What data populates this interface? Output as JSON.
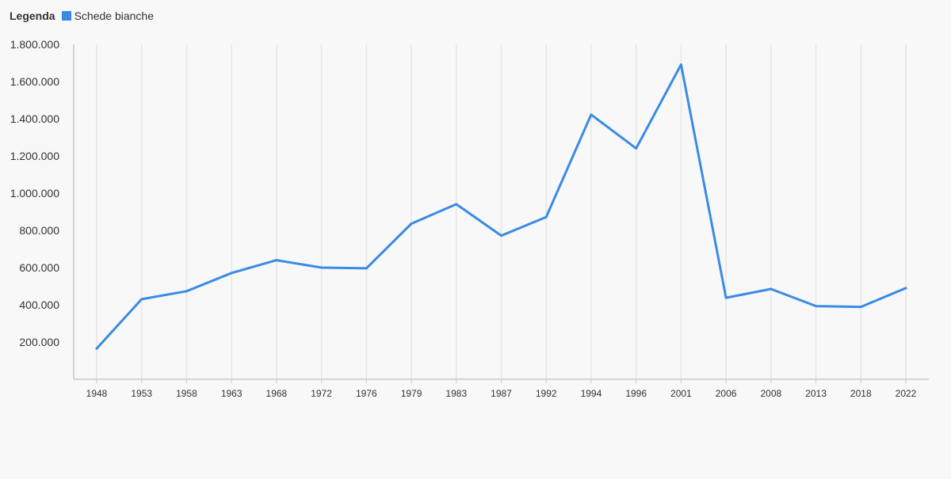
{
  "legend": {
    "title": "Legenda"
  },
  "colors": {
    "series": "#3a8be6",
    "grid": "#e6e6e6",
    "axis": "#c8c8c8",
    "text": "#333333"
  },
  "chart_data": {
    "type": "line",
    "title": "",
    "xlabel": "",
    "ylabel": "",
    "ylim": [
      0,
      1800000
    ],
    "yticks": [
      {
        "value": 200000,
        "label": "200.000"
      },
      {
        "value": 400000,
        "label": "400.000"
      },
      {
        "value": 600000,
        "label": "600.000"
      },
      {
        "value": 800000,
        "label": "800.000"
      },
      {
        "value": 1000000,
        "label": "1.000.000"
      },
      {
        "value": 1200000,
        "label": "1.200.000"
      },
      {
        "value": 1400000,
        "label": "1.400.000"
      },
      {
        "value": 1600000,
        "label": "1.600.000"
      },
      {
        "value": 1800000,
        "label": "1.800.000"
      }
    ],
    "categories": [
      "1948",
      "1953",
      "1958",
      "1963",
      "1968",
      "1972",
      "1976",
      "1979",
      "1983",
      "1987",
      "1992",
      "1994",
      "1996",
      "2001",
      "2006",
      "2008",
      "2013",
      "2018",
      "2022"
    ],
    "grid": true,
    "legend_position": "top-left",
    "series": [
      {
        "name": "Schede bianche",
        "values": [
          165000,
          430000,
          473000,
          571000,
          640000,
          600000,
          596000,
          836000,
          941000,
          772000,
          872000,
          1422000,
          1241000,
          1691000,
          438000,
          485000,
          393000,
          389000,
          490000
        ]
      }
    ]
  }
}
